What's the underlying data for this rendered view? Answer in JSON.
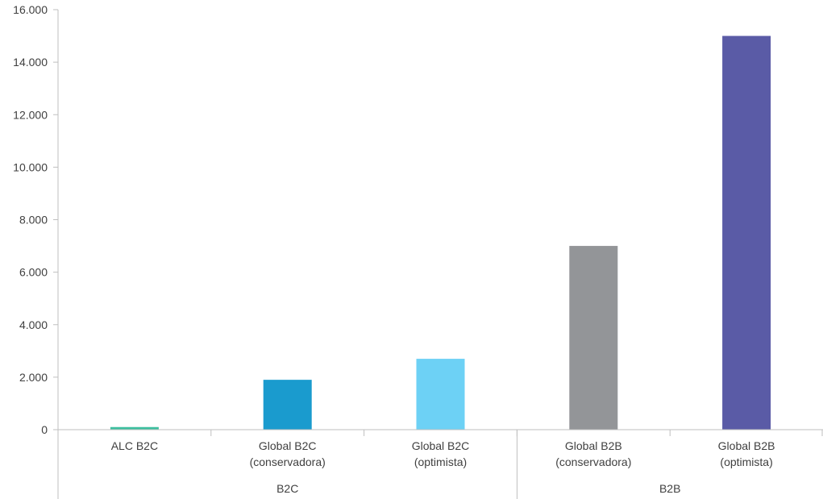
{
  "chart_data": {
    "type": "bar",
    "categories": [
      [
        "ALC B2C"
      ],
      [
        "Global B2C",
        "(conservadora)"
      ],
      [
        "Global B2C",
        "(optimista)"
      ],
      [
        "Global B2B",
        "(conservadora)"
      ],
      [
        "Global B2B",
        "(optimista)"
      ]
    ],
    "values": [
      100,
      1900,
      2700,
      7000,
      15000
    ],
    "colors": [
      "#3dbf9f",
      "#1a9bce",
      "#6dd1f5",
      "#939598",
      "#5a5ba6"
    ],
    "groups": [
      {
        "label": "B2C",
        "start": 0,
        "end": 2
      },
      {
        "label": "B2B",
        "start": 3,
        "end": 4
      }
    ],
    "ylim": [
      0,
      16000
    ],
    "yticks": [
      0,
      2000,
      4000,
      6000,
      8000,
      10000,
      12000,
      14000,
      16000
    ],
    "ytick_labels": [
      "0",
      "2.000",
      "4.000",
      "6.000",
      "8.000",
      "10.000",
      "12.000",
      "14.000",
      "16.000"
    ],
    "grid": false,
    "legend": "none"
  }
}
